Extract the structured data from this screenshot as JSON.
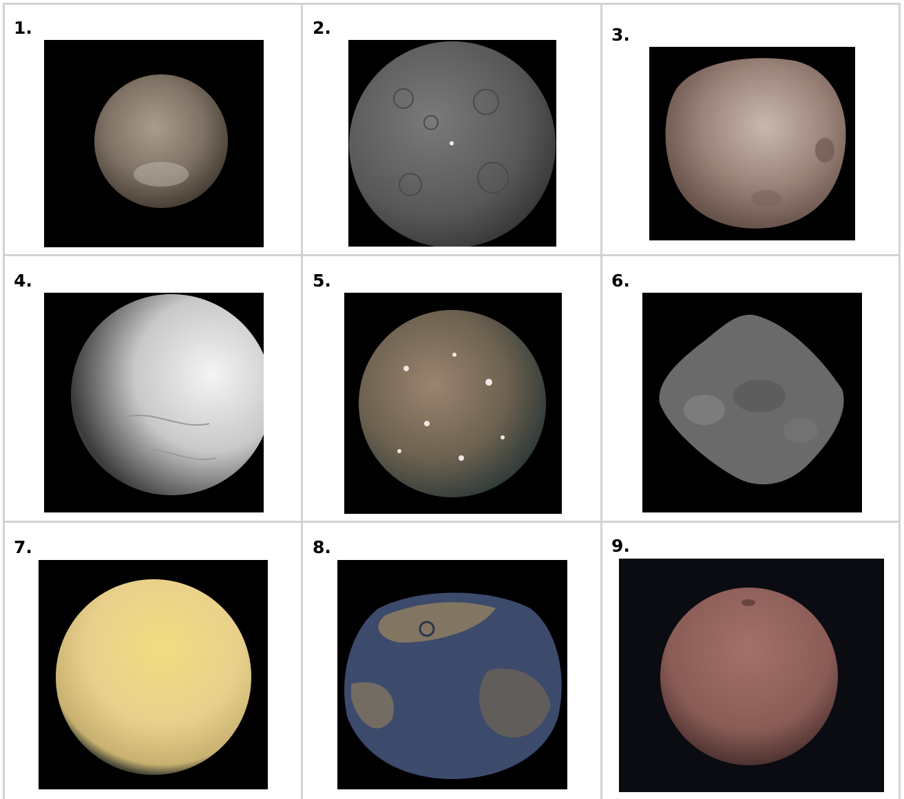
{
  "cells": [
    {
      "number": "1.",
      "image": "icy-moon-photo"
    },
    {
      "number": "2.",
      "image": "cratered-gray-dwarf-planet-photo"
    },
    {
      "number": "3.",
      "image": "irregular-reddish-moon-photo"
    },
    {
      "number": "4.",
      "image": "white-icy-moon-photo"
    },
    {
      "number": "5.",
      "image": "heavily-cratered-colorful-moon-photo"
    },
    {
      "number": "6.",
      "image": "rubble-pile-asteroid-photo"
    },
    {
      "number": "7.",
      "image": "hazy-yellow-moon-photo"
    },
    {
      "number": "8.",
      "image": "blue-metallic-asteroid-photo"
    },
    {
      "number": "9.",
      "image": "reddish-brown-moon-photo"
    }
  ]
}
